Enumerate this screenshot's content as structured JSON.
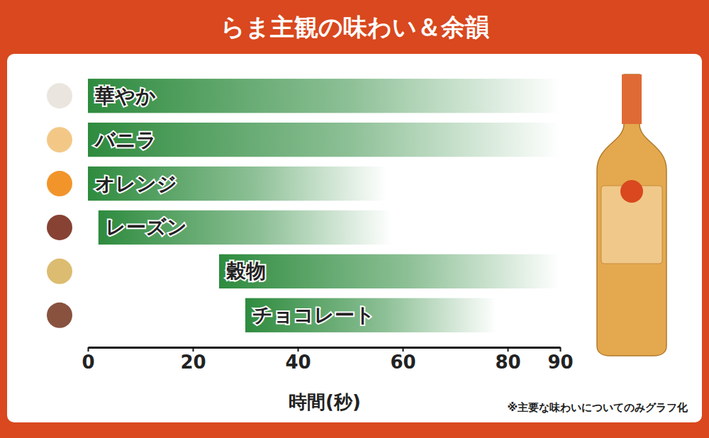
{
  "chart_data": {
    "type": "bar",
    "orientation": "horizontal",
    "title": "らま主観の味わい＆余韻",
    "categories": [
      "華やか",
      "バニラ",
      "オレンジ",
      "レーズン",
      "穀物",
      "チョコレート"
    ],
    "start": [
      0,
      0,
      0,
      2,
      25,
      30
    ],
    "values": [
      90,
      90,
      57,
      58,
      90,
      78
    ],
    "color": "#2e8b3e",
    "xlim": [
      0,
      90
    ],
    "xticks": [
      0,
      20,
      40,
      60,
      80,
      90
    ],
    "x_label": "時間(秒)",
    "note": "※主要な味わいについてのみグラフ化",
    "grid": false
  }
}
